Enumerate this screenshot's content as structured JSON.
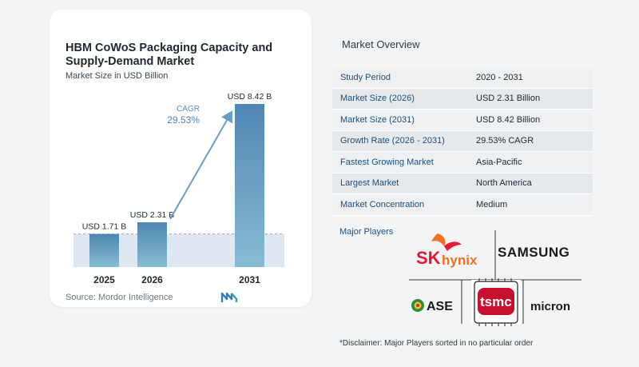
{
  "chart_data": {
    "type": "bar",
    "title": "HBM CoWoS Packaging Capacity and Supply-Demand Market",
    "ylabel": "Market Size in USD Billion",
    "categories": [
      "2025",
      "2026",
      "2031"
    ],
    "values": [
      1.71,
      2.31,
      8.42
    ],
    "data_labels": [
      "USD 1.71 B",
      "USD 2.31 B",
      "USD 8.42 B"
    ],
    "ylim": [
      0,
      9
    ],
    "grid": false,
    "cagr": {
      "label": "CAGR",
      "value": "29.53%"
    }
  },
  "source": "Source:  Mordor Intelligence",
  "overview": {
    "title": "Market Overview",
    "rows": [
      {
        "label": "Study Period",
        "value": "2020 - 2031"
      },
      {
        "label": "Market Size (2026)",
        "value": "USD 2.31 Billion"
      },
      {
        "label": "Market Size (2031)",
        "value": "USD 8.42 Billion"
      },
      {
        "label": "Growth Rate (2026 - 2031)",
        "value": "29.53% CAGR"
      },
      {
        "label": "Fastest Growing Market",
        "value": "Asia-Pacific"
      },
      {
        "label": "Largest Market",
        "value": "North America"
      },
      {
        "label": "Market Concentration",
        "value": "Medium"
      }
    ]
  },
  "players": {
    "title": "Major Players",
    "logos": [
      "SK hynix",
      "SAMSUNG",
      "ASE",
      "tsmc",
      "micron"
    ]
  },
  "disclaimer": "*Disclaimer: Major Players sorted in no particular order",
  "colors": {
    "bar_light": "#5b8fb8",
    "bar_dark": "#7fb3cf",
    "arrow": "#6a9ec7",
    "band": "#dfe8f1",
    "label_blue": "#1a4f80"
  }
}
